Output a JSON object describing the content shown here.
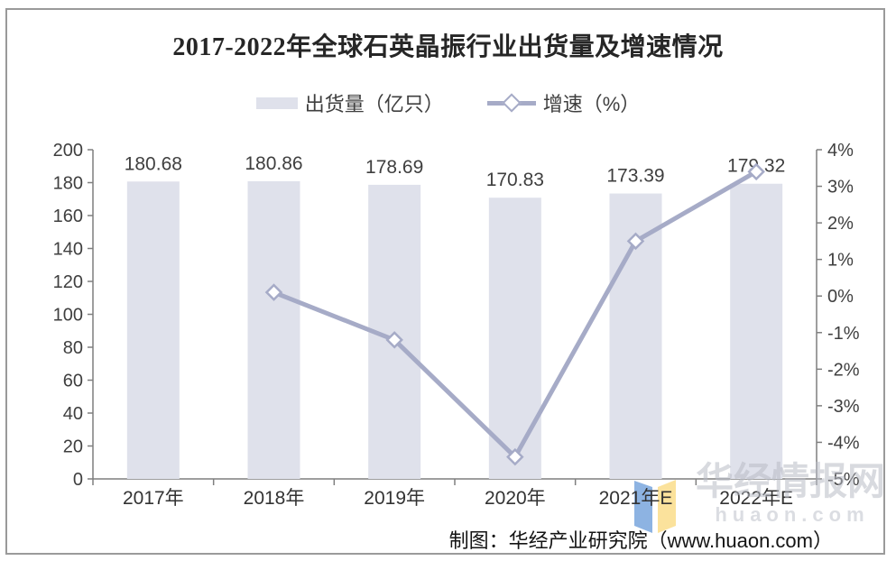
{
  "title": "2017-2022年全球石英晶振行业出货量及增速情况",
  "legend": {
    "bar_label": "出货量（亿只）",
    "line_label": "增速（%）"
  },
  "footer": {
    "source": "制图：华经产业研究院（www.huaon.com）"
  },
  "watermark": {
    "line1": "华经情报网",
    "line2": "huaon.com"
  },
  "colors": {
    "bar": "#dfe1eb",
    "line": "#a6abc7",
    "marker_fill": "#ffffff",
    "axis": "#7f7f7f",
    "text": "#3f3f3f",
    "title_text": "#262626",
    "watermark_text": "#b9bcc6",
    "logo_blue": "#8db3e2",
    "logo_yellow": "#fbe29c"
  },
  "chart_data": {
    "type": "bar",
    "title": "2017-2022年全球石英晶振行业出货量及增速情况",
    "categories": [
      "2017年",
      "2018年",
      "2019年",
      "2020年",
      "2021年E",
      "2022年E"
    ],
    "series": [
      {
        "name": "出货量（亿只）",
        "type": "bar",
        "axis": "left",
        "values": [
          180.68,
          180.86,
          178.69,
          170.83,
          173.39,
          179.32
        ],
        "data_labels": [
          "180.68",
          "180.86",
          "178.69",
          "170.83",
          "173.39",
          "179.32"
        ]
      },
      {
        "name": "增速（%）",
        "type": "line",
        "axis": "right",
        "marker": "diamond",
        "values": [
          null,
          0.1,
          -1.2,
          -4.4,
          1.5,
          3.4
        ]
      }
    ],
    "left_axis": {
      "min": 0,
      "max": 200,
      "step": 20,
      "tick_labels": [
        "0",
        "20",
        "40",
        "60",
        "80",
        "100",
        "120",
        "140",
        "160",
        "180",
        "200"
      ]
    },
    "right_axis": {
      "min": -5,
      "max": 4,
      "step": 1,
      "tick_labels": [
        "-5%",
        "-4%",
        "-3%",
        "-2%",
        "-1%",
        "0%",
        "1%",
        "2%",
        "3%",
        "4%"
      ]
    },
    "grid": false,
    "legend_position": "top"
  }
}
